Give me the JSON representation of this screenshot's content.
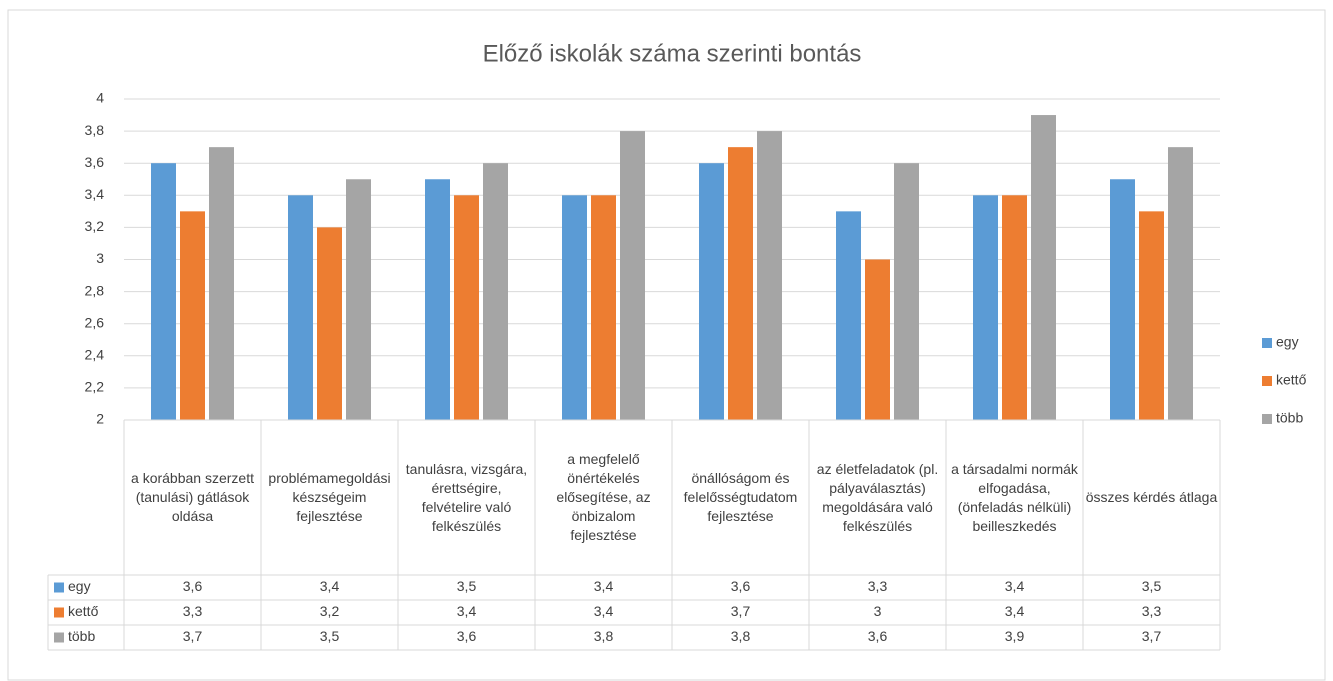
{
  "chart_data": {
    "type": "bar",
    "title": "Előző iskolák száma szerinti bontás",
    "categories": [
      "a korábban szerzett (tanulási) gátlások oldása",
      "problémamegoldási készségeim fejlesztése",
      "tanulásra, vizsgára, érettségire, felvételire való felkészülés",
      "a megfelelő önértékelés elősegítése, az önbizalom fejlesztése",
      "önállóságom és felelősségtudatom fejlesztése",
      "az életfeladatok (pl. pályaválasztás) megoldására való felkészülés",
      "a társadalmi normák elfogadása, (önfeladás nélküli) beilleszkedés",
      "összes kérdés átlaga"
    ],
    "series": [
      {
        "name": "egy",
        "color": "#5b9bd5",
        "values": [
          3.6,
          3.4,
          3.5,
          3.4,
          3.6,
          3.3,
          3.4,
          3.5
        ],
        "value_labels": [
          "3,6",
          "3,4",
          "3,5",
          "3,4",
          "3,6",
          "3,3",
          "3,4",
          "3,5"
        ]
      },
      {
        "name": "kettő",
        "color": "#ed7d31",
        "values": [
          3.3,
          3.2,
          3.4,
          3.4,
          3.7,
          3,
          3.4,
          3.3
        ],
        "value_labels": [
          "3,3",
          "3,2",
          "3,4",
          "3,4",
          "3,7",
          "3",
          "3,4",
          "3,3"
        ]
      },
      {
        "name": "több",
        "color": "#a5a5a5",
        "values": [
          3.7,
          3.5,
          3.6,
          3.8,
          3.8,
          3.6,
          3.9,
          3.7
        ],
        "value_labels": [
          "3,7",
          "3,5",
          "3,6",
          "3,8",
          "3,8",
          "3,6",
          "3,9",
          "3,7"
        ]
      }
    ],
    "ylim": [
      2,
      4
    ],
    "yticks": [
      2,
      {
        "value": 2.2,
        "label": "2,2"
      },
      {
        "value": 2.4,
        "label": "2,4"
      },
      {
        "value": 2.6,
        "label": "2,6"
      },
      {
        "value": 2.8,
        "label": "2,8"
      },
      3,
      {
        "value": 3.2,
        "label": "3,2"
      },
      {
        "value": 3.4,
        "label": "3,4"
      },
      {
        "value": 3.6,
        "label": "3,6"
      },
      {
        "value": 3.8,
        "label": "3,8"
      },
      4
    ],
    "grid": true,
    "legend": "right"
  }
}
